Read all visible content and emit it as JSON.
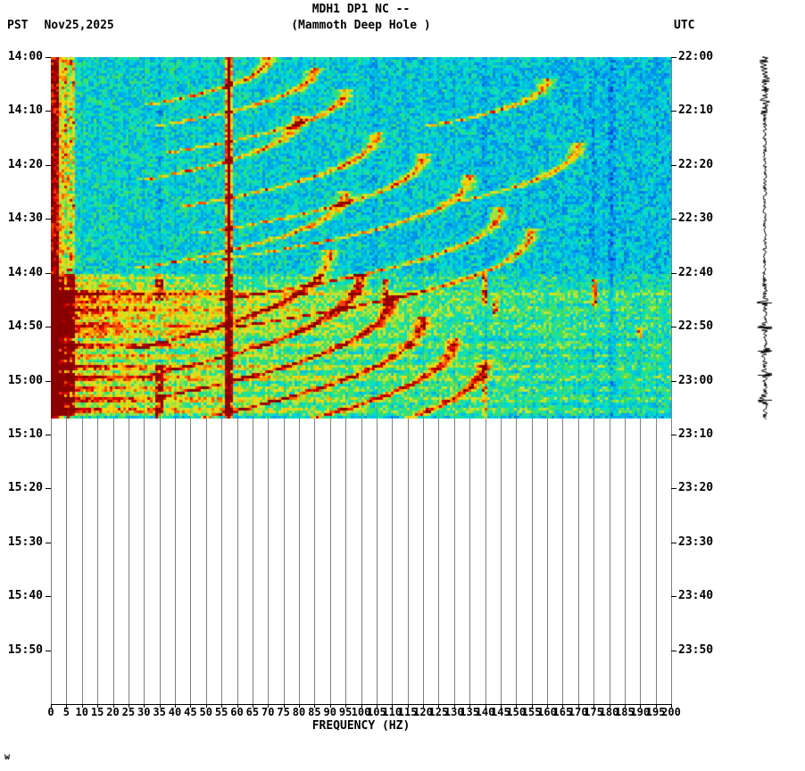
{
  "header": {
    "title_line1": "MDH1 DP1 NC --",
    "title_line2": "(Mammoth Deep Hole )",
    "tz_left": "PST",
    "date": "Nov25,2025",
    "tz_right": "UTC"
  },
  "axes": {
    "left_ticks": [
      "14:00",
      "14:10",
      "14:20",
      "14:30",
      "14:40",
      "14:50",
      "15:00",
      "15:10",
      "15:20",
      "15:30",
      "15:40",
      "15:50"
    ],
    "right_ticks": [
      "22:00",
      "22:10",
      "22:20",
      "22:30",
      "22:40",
      "22:50",
      "23:00",
      "23:10",
      "23:20",
      "23:30",
      "23:40",
      "23:50"
    ],
    "x_ticks": [
      "0",
      "5",
      "10",
      "15",
      "20",
      "25",
      "30",
      "35",
      "40",
      "45",
      "50",
      "55",
      "60",
      "65",
      "70",
      "75",
      "80",
      "85",
      "90",
      "95",
      "100",
      "105",
      "110",
      "115",
      "120",
      "125",
      "130",
      "135",
      "140",
      "145",
      "150",
      "155",
      "160",
      "165",
      "170",
      "175",
      "180",
      "185",
      "190",
      "195",
      "200"
    ],
    "xlabel": "FREQUENCY (HZ)"
  },
  "footer_mark": "w",
  "chart_data": {
    "type": "heatmap",
    "title": "MDH1 DP1 NC -- (Mammoth Deep Hole )",
    "xlabel": "FREQUENCY (HZ)",
    "x_range_hz": [
      0,
      200
    ],
    "x_tick_step_hz": 5,
    "time_start_pst": "14:00",
    "time_end_pst": "16:00",
    "time_start_utc": "22:00",
    "time_end_utc": "00:00",
    "tick_interval_min": 10,
    "data_end_pst": "15:07",
    "data_end_min": 67,
    "grid": true,
    "seed": 7,
    "palette": [
      {
        "v": 0.0,
        "c": "#000080"
      },
      {
        "v": 0.2,
        "c": "#0040e0"
      },
      {
        "v": 0.35,
        "c": "#00a0f0"
      },
      {
        "v": 0.5,
        "c": "#00e0d0"
      },
      {
        "v": 0.6,
        "c": "#40e060"
      },
      {
        "v": 0.7,
        "c": "#c8e830"
      },
      {
        "v": 0.8,
        "c": "#ffd000"
      },
      {
        "v": 0.88,
        "c": "#ff6000"
      },
      {
        "v": 0.95,
        "c": "#e00000"
      },
      {
        "v": 1.06,
        "c": "#800000"
      }
    ],
    "low_freq": {
      "red_max_hz": 2.5,
      "mottle_max_hz": 8
    },
    "persistent_lines": [
      {
        "f": 57.5,
        "s": 0.85
      },
      {
        "f": 35,
        "s": -0.08
      },
      {
        "f": 104,
        "s": -0.07
      },
      {
        "f": 140,
        "s": -0.06
      },
      {
        "f": 175,
        "s": -0.05
      },
      {
        "f": 181,
        "s": -0.12
      }
    ],
    "chirps": [
      {
        "t0": 0,
        "f0": 30,
        "f1": 70,
        "dur": 9
      },
      {
        "t0": 2,
        "f0": 32,
        "f1": 85,
        "dur": 11
      },
      {
        "t0": 6,
        "f0": 35,
        "f1": 95,
        "dur": 12
      },
      {
        "t0": 4,
        "f0": 120,
        "f1": 160,
        "dur": 9
      },
      {
        "t0": 11,
        "f0": 28,
        "f1": 80,
        "dur": 12
      },
      {
        "t0": 14,
        "f0": 40,
        "f1": 105,
        "dur": 14
      },
      {
        "t0": 18,
        "f0": 45,
        "f1": 120,
        "dur": 15
      },
      {
        "t0": 22,
        "f0": 50,
        "f1": 135,
        "dur": 16
      },
      {
        "t0": 16,
        "f0": 130,
        "f1": 170,
        "dur": 11
      },
      {
        "t0": 25,
        "f0": 30,
        "f1": 95,
        "dur": 14
      },
      {
        "t0": 28,
        "f0": 55,
        "f1": 145,
        "dur": 17
      },
      {
        "t0": 32,
        "f0": 60,
        "f1": 155,
        "dur": 18
      },
      {
        "t0": 36,
        "f0": 28,
        "f1": 90,
        "dur": 18
      },
      {
        "t0": 40,
        "f0": 32,
        "f1": 100,
        "dur": 19
      },
      {
        "t0": 44,
        "f0": 36,
        "f1": 110,
        "dur": 19
      },
      {
        "t0": 48,
        "f0": 40,
        "f1": 120,
        "dur": 20
      },
      {
        "t0": 52,
        "f0": 44,
        "f1": 130,
        "dur": 20
      },
      {
        "t0": 56,
        "f0": 48,
        "f1": 140,
        "dur": 20
      }
    ],
    "bands": [
      {
        "t": 41,
        "s": 0.45
      },
      {
        "t": 42.5,
        "s": 0.5
      },
      {
        "t": 44,
        "s": 1.0
      },
      {
        "t": 45.5,
        "s": 0.7
      },
      {
        "t": 47,
        "s": 0.9
      },
      {
        "t": 48.5,
        "s": 0.65
      },
      {
        "t": 50,
        "s": 0.85
      },
      {
        "t": 51.5,
        "s": 0.7
      },
      {
        "t": 53.5,
        "s": 0.9
      },
      {
        "t": 55.5,
        "s": 0.7
      },
      {
        "t": 57.5,
        "s": 0.9
      },
      {
        "t": 59.5,
        "s": 1.0
      },
      {
        "t": 61.5,
        "s": 0.8
      },
      {
        "t": 63.5,
        "s": 0.95
      },
      {
        "t": 65.5,
        "s": 0.85
      }
    ],
    "dashes": [
      {
        "f": 35,
        "t0": 40,
        "t1": 45,
        "s": 0.5
      },
      {
        "f": 35,
        "t0": 57,
        "t1": 67,
        "s": 0.45
      },
      {
        "f": 108,
        "t0": 41,
        "t1": 46,
        "s": 0.5
      },
      {
        "f": 140,
        "t0": 40,
        "t1": 46,
        "s": 0.5
      },
      {
        "f": 140,
        "t0": 57,
        "t1": 67,
        "s": 0.45
      },
      {
        "f": 143,
        "t0": 44,
        "t1": 48,
        "s": 0.4
      },
      {
        "f": 175,
        "t0": 41,
        "t1": 46,
        "s": 0.5
      },
      {
        "f": 190,
        "t0": 50,
        "t1": 52,
        "s": 0.35
      }
    ],
    "trace": {
      "event_minutes": [
        45.5,
        50,
        54.5,
        59,
        63.5
      ]
    }
  }
}
